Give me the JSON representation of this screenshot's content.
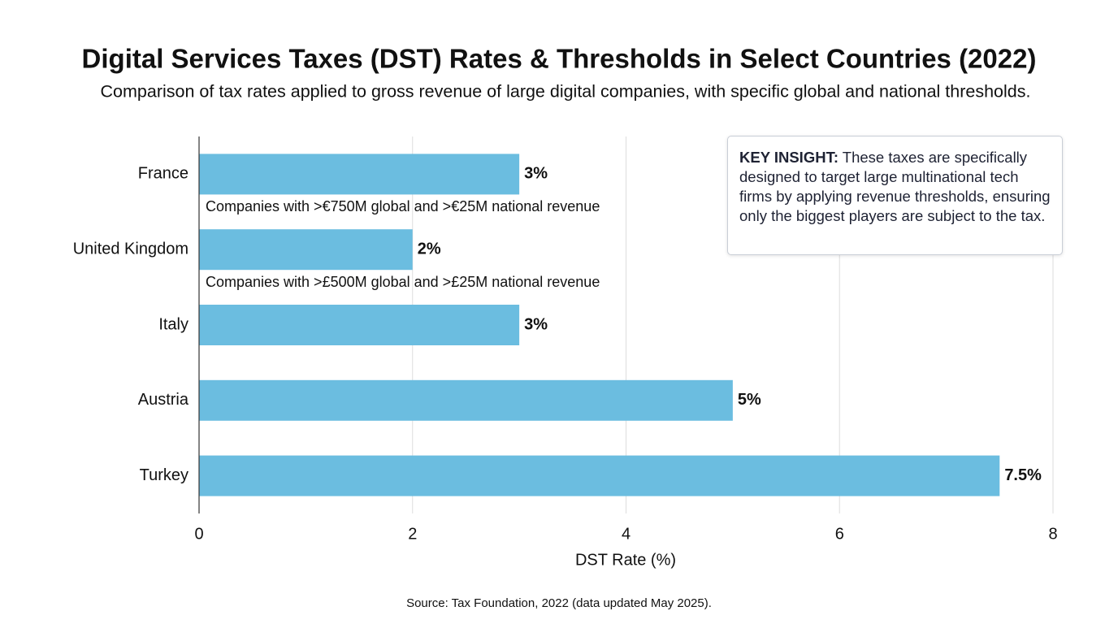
{
  "chart_data": {
    "type": "bar",
    "orientation": "horizontal",
    "title": "Digital Services Taxes (DST) Rates & Thresholds in Select Countries (2022)",
    "subtitle": "Comparison of tax rates applied to gross revenue of large digital companies, with specific global and national thresholds.",
    "categories": [
      "France",
      "United Kingdom",
      "Italy",
      "Austria",
      "Turkey"
    ],
    "values": [
      3,
      2,
      3,
      5,
      7.5
    ],
    "value_labels": [
      "3%",
      "2%",
      "3%",
      "5%",
      "7.5%"
    ],
    "bar_notes": [
      "Companies with >€750M global and >€25M national revenue",
      "Companies with >£500M global and >£25M national revenue",
      null,
      null,
      null
    ],
    "color": "#6bbde0",
    "xlim": [
      0,
      8
    ],
    "xticks": [
      0,
      2,
      4,
      6,
      8
    ],
    "xlabel": "DST Rate (%)",
    "grid": true,
    "insight": {
      "label": "KEY INSIGHT:",
      "text": "These taxes are specifically designed to target large multinational tech firms by applying revenue thresholds, ensuring only the biggest players are subject to the tax."
    },
    "source": "Source: Tax Foundation, 2022 (data updated May 2025)."
  }
}
